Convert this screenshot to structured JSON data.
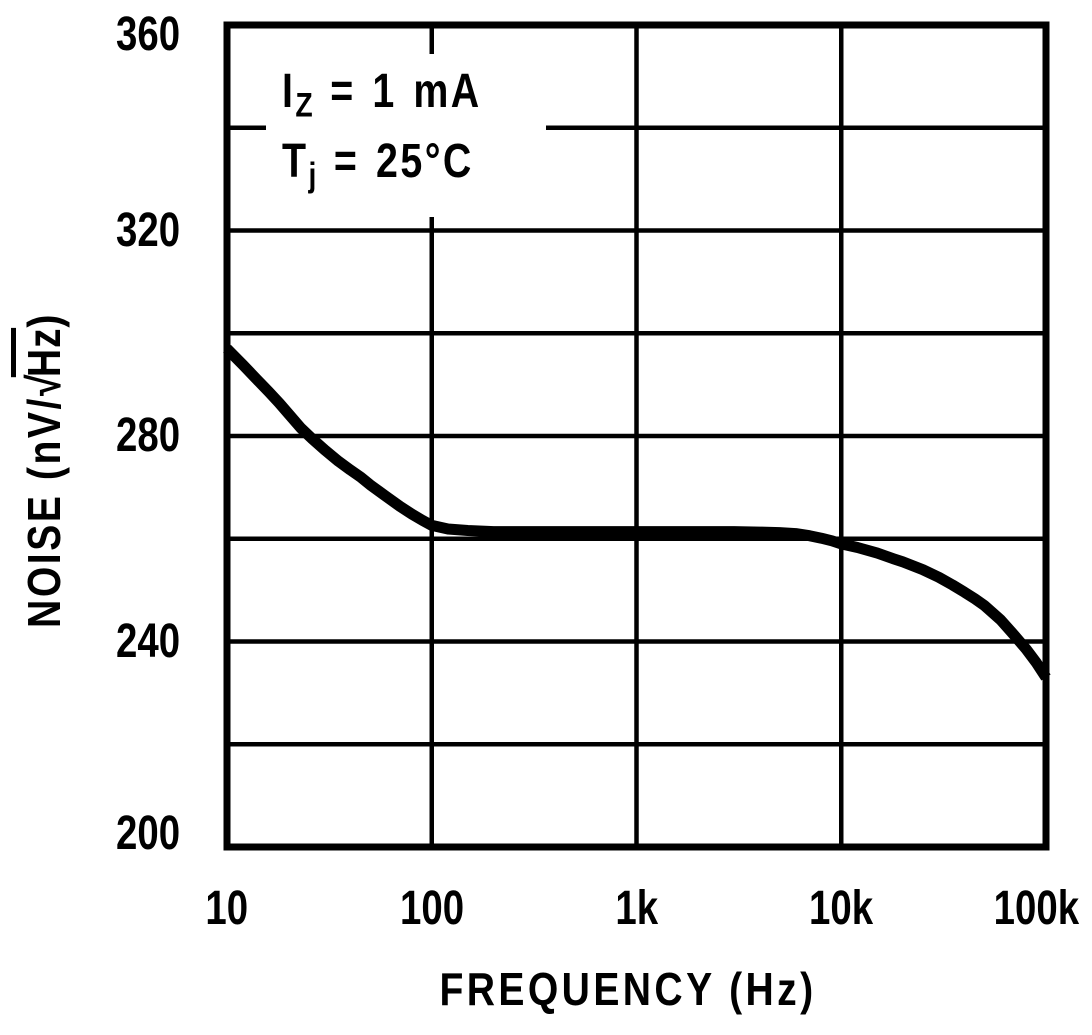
{
  "figure": {
    "background": "#ffffff",
    "ink_color": "#000000"
  },
  "chart_data": {
    "type": "line",
    "title": "",
    "xlabel": "FREQUENCY (Hz)",
    "ylabel": {
      "prefix": "NOISE (nV/",
      "radical": "√",
      "radicand": "Hz",
      "suffix": ")"
    },
    "x_scale": "log",
    "y_scale": "linear",
    "xlim": [
      10,
      100000
    ],
    "ylim": [
      200,
      360
    ],
    "grid": "on",
    "y_gridline_step": 20,
    "x_ticks": [
      {
        "value": 10,
        "label": "10"
      },
      {
        "value": 100,
        "label": "100"
      },
      {
        "value": 1000,
        "label": "1k"
      },
      {
        "value": 10000,
        "label": "10k"
      },
      {
        "value": 100000,
        "label": "100k"
      }
    ],
    "y_ticks": [
      {
        "value": 360,
        "label": "360"
      },
      {
        "value": 320,
        "label": "320"
      },
      {
        "value": 280,
        "label": "280"
      },
      {
        "value": 240,
        "label": "240"
      },
      {
        "value": 200,
        "label": "200"
      }
    ],
    "conditions": {
      "line1": {
        "base": "I",
        "sub": "Z",
        "rest": " = 1 mA"
      },
      "line2": {
        "base": "T",
        "sub": "j",
        "rest": " = 25°C"
      }
    },
    "series": [
      {
        "name": "noise",
        "points": [
          [
            10,
            297
          ],
          [
            12,
            293.8
          ],
          [
            14,
            291
          ],
          [
            16,
            288.6
          ],
          [
            18,
            286.4
          ],
          [
            20,
            284.3
          ],
          [
            23,
            281.5
          ],
          [
            26,
            279.5
          ],
          [
            30,
            277.3
          ],
          [
            35,
            275.1
          ],
          [
            40,
            273.4
          ],
          [
            45,
            272
          ],
          [
            50,
            270.5
          ],
          [
            60,
            268.2
          ],
          [
            70,
            266.3
          ],
          [
            80,
            264.8
          ],
          [
            90,
            263.6
          ],
          [
            100,
            262.6
          ],
          [
            120,
            261.9
          ],
          [
            150,
            261.6
          ],
          [
            200,
            261.4
          ],
          [
            300,
            261.4
          ],
          [
            500,
            261.4
          ],
          [
            700,
            261.4
          ],
          [
            1000,
            261.4
          ],
          [
            1500,
            261.4
          ],
          [
            2000,
            261.4
          ],
          [
            3000,
            261.4
          ],
          [
            4000,
            261.3
          ],
          [
            5000,
            261.2
          ],
          [
            6000,
            261
          ],
          [
            7000,
            260.6
          ],
          [
            8000,
            260.1
          ],
          [
            9000,
            259.6
          ],
          [
            10000,
            259
          ],
          [
            12000,
            258.3
          ],
          [
            15000,
            257.2
          ],
          [
            18000,
            256.1
          ],
          [
            20000,
            255.5
          ],
          [
            25000,
            254
          ],
          [
            30000,
            252.5
          ],
          [
            35000,
            251
          ],
          [
            40000,
            249.6
          ],
          [
            45000,
            248.3
          ],
          [
            50000,
            247
          ],
          [
            60000,
            244.2
          ],
          [
            70000,
            241.2
          ],
          [
            80000,
            238.5
          ],
          [
            90000,
            235.8
          ],
          [
            100000,
            233
          ]
        ]
      }
    ]
  }
}
